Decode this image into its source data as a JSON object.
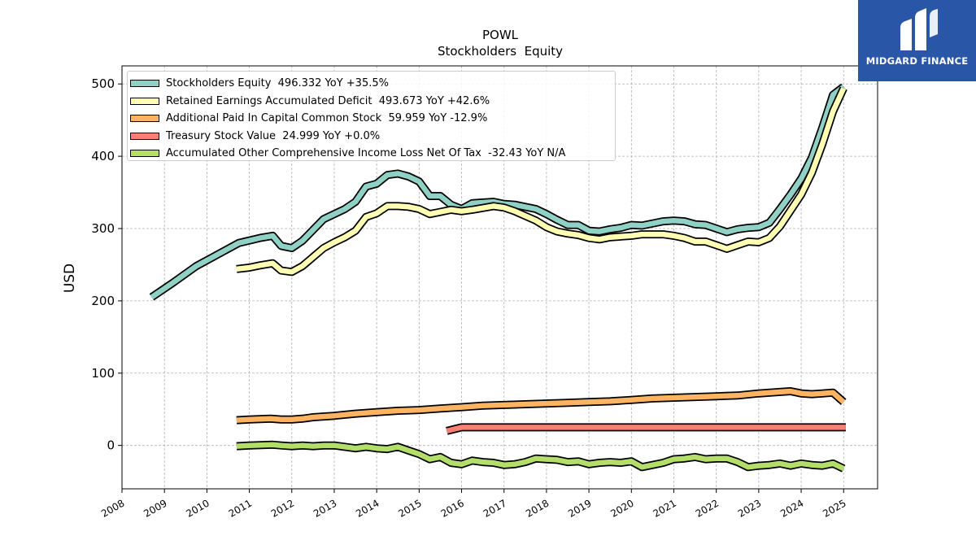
{
  "chart_data": {
    "type": "line",
    "title": "POWL",
    "subtitle": "Stockholders  Equity",
    "ylabel": "USD",
    "xlabel": "",
    "xlim": [
      2008.0,
      2025.8
    ],
    "ylim": [
      -60,
      525
    ],
    "x_ticks": [
      "2008",
      "2009",
      "2010",
      "2011",
      "2012",
      "2013",
      "2014",
      "2015",
      "2016",
      "2017",
      "2018",
      "2019",
      "2020",
      "2021",
      "2022",
      "2023",
      "2024",
      "2025"
    ],
    "y_ticks": [
      0,
      100,
      200,
      300,
      400,
      500
    ],
    "grid": true,
    "legend_position": "top-left",
    "series": [
      {
        "name": "Stockholders Equity  496.332 YoY +35.5%",
        "color": "#8fd1c4",
        "points": [
          [
            2008.7,
            205
          ],
          [
            2009.2,
            225
          ],
          [
            2009.75,
            248
          ],
          [
            2010.25,
            264
          ],
          [
            2010.75,
            280
          ],
          [
            2011.25,
            287
          ],
          [
            2011.55,
            290
          ],
          [
            2011.75,
            276
          ],
          [
            2012.0,
            273
          ],
          [
            2012.25,
            283
          ],
          [
            2012.75,
            313
          ],
          [
            2013.0,
            320
          ],
          [
            2013.25,
            327
          ],
          [
            2013.5,
            337
          ],
          [
            2013.75,
            358
          ],
          [
            2014.0,
            362
          ],
          [
            2014.25,
            374
          ],
          [
            2014.5,
            376
          ],
          [
            2014.75,
            372
          ],
          [
            2015.0,
            365
          ],
          [
            2015.25,
            345
          ],
          [
            2015.5,
            345
          ],
          [
            2015.75,
            333
          ],
          [
            2016.0,
            327
          ],
          [
            2016.25,
            335
          ],
          [
            2016.75,
            337
          ],
          [
            2017.0,
            334
          ],
          [
            2017.25,
            333
          ],
          [
            2017.75,
            327
          ],
          [
            2018.0,
            320
          ],
          [
            2018.25,
            312
          ],
          [
            2018.5,
            305
          ],
          [
            2018.75,
            305
          ],
          [
            2019.0,
            297
          ],
          [
            2019.25,
            296
          ],
          [
            2019.5,
            299
          ],
          [
            2019.75,
            301
          ],
          [
            2020.0,
            305
          ],
          [
            2020.25,
            304
          ],
          [
            2020.75,
            310
          ],
          [
            2021.0,
            311
          ],
          [
            2021.25,
            310
          ],
          [
            2021.5,
            306
          ],
          [
            2021.75,
            305
          ],
          [
            2022.0,
            300
          ],
          [
            2022.25,
            295
          ],
          [
            2022.5,
            299
          ],
          [
            2022.75,
            301
          ],
          [
            2023.0,
            302
          ],
          [
            2023.25,
            308
          ],
          [
            2023.5,
            327
          ],
          [
            2023.75,
            347
          ],
          [
            2024.0,
            369
          ],
          [
            2024.25,
            398
          ],
          [
            2024.5,
            440
          ],
          [
            2024.75,
            485
          ],
          [
            2025.0,
            496
          ]
        ]
      },
      {
        "name": "Retained Earnings Accumulated Deficit  493.673 YoY +42.6%",
        "color": "#ffffb3",
        "points": [
          [
            2010.7,
            244
          ],
          [
            2011.0,
            246
          ],
          [
            2011.25,
            249
          ],
          [
            2011.55,
            252
          ],
          [
            2011.75,
            242
          ],
          [
            2012.0,
            240
          ],
          [
            2012.25,
            248
          ],
          [
            2012.75,
            273
          ],
          [
            2013.0,
            281
          ],
          [
            2013.25,
            288
          ],
          [
            2013.5,
            297
          ],
          [
            2013.75,
            316
          ],
          [
            2014.0,
            321
          ],
          [
            2014.25,
            331
          ],
          [
            2014.5,
            331
          ],
          [
            2014.75,
            330
          ],
          [
            2015.0,
            327
          ],
          [
            2015.25,
            320
          ],
          [
            2015.5,
            323
          ],
          [
            2015.75,
            326
          ],
          [
            2016.0,
            324
          ],
          [
            2016.25,
            326
          ],
          [
            2016.75,
            331
          ],
          [
            2017.0,
            329
          ],
          [
            2017.25,
            324
          ],
          [
            2017.75,
            311
          ],
          [
            2018.0,
            302
          ],
          [
            2018.25,
            296
          ],
          [
            2018.5,
            293
          ],
          [
            2018.75,
            291
          ],
          [
            2019.0,
            287
          ],
          [
            2019.25,
            285
          ],
          [
            2019.5,
            288
          ],
          [
            2019.75,
            289
          ],
          [
            2020.0,
            290
          ],
          [
            2020.25,
            292
          ],
          [
            2020.75,
            292
          ],
          [
            2021.0,
            290
          ],
          [
            2021.25,
            287
          ],
          [
            2021.5,
            282
          ],
          [
            2021.75,
            282
          ],
          [
            2022.0,
            277
          ],
          [
            2022.25,
            272
          ],
          [
            2022.5,
            277
          ],
          [
            2022.75,
            282
          ],
          [
            2023.0,
            281
          ],
          [
            2023.25,
            287
          ],
          [
            2023.5,
            303
          ],
          [
            2023.75,
            325
          ],
          [
            2024.0,
            347
          ],
          [
            2024.25,
            377
          ],
          [
            2024.5,
            417
          ],
          [
            2024.75,
            462
          ],
          [
            2025.0,
            494
          ]
        ]
      },
      {
        "name": "Additional Paid In Capital Common Stock  59.959 YoY -12.9%",
        "color": "#fdb462",
        "points": [
          [
            2010.7,
            35
          ],
          [
            2011.0,
            36
          ],
          [
            2011.5,
            37
          ],
          [
            2011.75,
            36
          ],
          [
            2012.0,
            36
          ],
          [
            2012.25,
            37
          ],
          [
            2012.5,
            39
          ],
          [
            2013.0,
            41
          ],
          [
            2013.5,
            44
          ],
          [
            2014.0,
            46
          ],
          [
            2014.5,
            48
          ],
          [
            2015.0,
            49
          ],
          [
            2015.5,
            51
          ],
          [
            2016.0,
            53
          ],
          [
            2016.5,
            55
          ],
          [
            2017.0,
            56
          ],
          [
            2017.5,
            57
          ],
          [
            2018.0,
            58
          ],
          [
            2018.5,
            59
          ],
          [
            2019.0,
            60
          ],
          [
            2019.5,
            61
          ],
          [
            2020.0,
            63
          ],
          [
            2020.5,
            65
          ],
          [
            2021.0,
            66
          ],
          [
            2021.5,
            67
          ],
          [
            2022.0,
            68
          ],
          [
            2022.5,
            69
          ],
          [
            2023.0,
            72
          ],
          [
            2023.5,
            74
          ],
          [
            2023.75,
            75
          ],
          [
            2024.0,
            72
          ],
          [
            2024.25,
            71
          ],
          [
            2024.5,
            72
          ],
          [
            2024.75,
            73
          ],
          [
            2025.0,
            60
          ]
        ]
      },
      {
        "name": "Treasury Stock Value  24.999 YoY +0.0%",
        "color": "#fb8072",
        "points": [
          [
            2015.65,
            20
          ],
          [
            2016.0,
            25
          ],
          [
            2025.05,
            25
          ]
        ]
      },
      {
        "name": "Accumulated Other Comprehensive Income Loss Net Of Tax  -32.43 YoY N/A",
        "color": "#b3de69",
        "points": [
          [
            2010.7,
            -1
          ],
          [
            2011.0,
            0
          ],
          [
            2011.55,
            1
          ],
          [
            2011.75,
            0
          ],
          [
            2012.0,
            -1
          ],
          [
            2012.25,
            0
          ],
          [
            2012.5,
            -1
          ],
          [
            2012.75,
            0
          ],
          [
            2013.0,
            0
          ],
          [
            2013.25,
            -2
          ],
          [
            2013.5,
            -4
          ],
          [
            2013.75,
            -2
          ],
          [
            2014.0,
            -4
          ],
          [
            2014.25,
            -5
          ],
          [
            2014.5,
            -2
          ],
          [
            2014.75,
            -7
          ],
          [
            2015.0,
            -12
          ],
          [
            2015.25,
            -19
          ],
          [
            2015.5,
            -16
          ],
          [
            2015.75,
            -24
          ],
          [
            2016.0,
            -26
          ],
          [
            2016.25,
            -21
          ],
          [
            2016.5,
            -23
          ],
          [
            2016.75,
            -24
          ],
          [
            2017.0,
            -27
          ],
          [
            2017.25,
            -26
          ],
          [
            2017.5,
            -23
          ],
          [
            2017.75,
            -18
          ],
          [
            2018.0,
            -19
          ],
          [
            2018.25,
            -20
          ],
          [
            2018.5,
            -23
          ],
          [
            2018.75,
            -22
          ],
          [
            2019.0,
            -26
          ],
          [
            2019.25,
            -24
          ],
          [
            2019.5,
            -23
          ],
          [
            2019.75,
            -24
          ],
          [
            2020.0,
            -22
          ],
          [
            2020.25,
            -30
          ],
          [
            2020.5,
            -27
          ],
          [
            2020.75,
            -24
          ],
          [
            2021.0,
            -19
          ],
          [
            2021.25,
            -18
          ],
          [
            2021.5,
            -16
          ],
          [
            2021.75,
            -19
          ],
          [
            2022.0,
            -18
          ],
          [
            2022.25,
            -18
          ],
          [
            2022.5,
            -23
          ],
          [
            2022.75,
            -30
          ],
          [
            2023.0,
            -28
          ],
          [
            2023.25,
            -27
          ],
          [
            2023.5,
            -25
          ],
          [
            2023.75,
            -28
          ],
          [
            2024.0,
            -25
          ],
          [
            2024.25,
            -27
          ],
          [
            2024.5,
            -28
          ],
          [
            2024.75,
            -25
          ],
          [
            2025.0,
            -32
          ]
        ]
      }
    ]
  },
  "branding": {
    "name": "MIDGARD FINANCE",
    "color": "#2a56a8"
  }
}
